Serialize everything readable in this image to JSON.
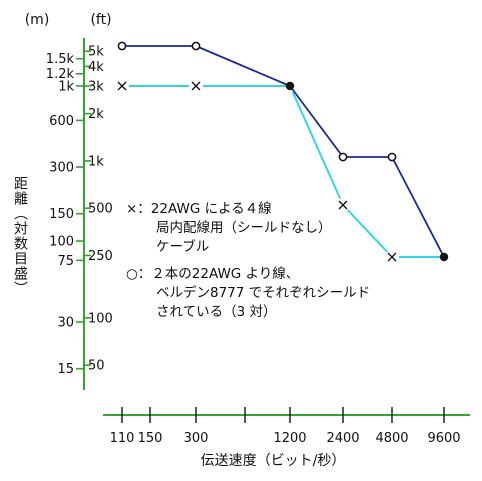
{
  "chart_data": {
    "type": "line",
    "xlabel": "伝送速度（ビット/秒）",
    "ylabel": "距離（対数目盛）",
    "y_units": [
      "(m)",
      "(ft)"
    ],
    "x_scale": "log",
    "y_scale": "log",
    "x_ticks": [
      110,
      150,
      300,
      600,
      1200,
      2400,
      4800,
      9600
    ],
    "x_tick_labels": [
      "110",
      "150",
      "300",
      "",
      "1200",
      "2400",
      "4800",
      "9600"
    ],
    "y_ticks_m": [
      15,
      30,
      75,
      100,
      150,
      300,
      600,
      1000,
      1200,
      1500
    ],
    "y_tick_labels_m": [
      "15",
      "30",
      "75",
      "100",
      "150",
      "300",
      "600",
      "1k",
      "1.2k",
      "1.5k"
    ],
    "y_ticks_ft": [
      50,
      100,
      250,
      500,
      1000,
      2000,
      3000,
      4000,
      5000
    ],
    "y_tick_labels_ft": [
      "50",
      "100",
      "250",
      "500",
      "1k",
      "2k",
      "3k",
      "4k",
      "5k"
    ],
    "grid": false,
    "series": [
      {
        "name": "×：22AWG による４線 局内配線用（シールドなし）ケーブル",
        "marker": "x",
        "color": "#33d6e6",
        "x": [
          110,
          300,
          1200,
          2400,
          4800,
          9600
        ],
        "y": [
          914,
          914,
          914,
          183,
          76,
          76
        ]
      },
      {
        "name": "○：２本の22AWG より線、ベルデン8777 でそれぞれシールドされている（3 対）",
        "marker": "o",
        "color": "#1a2a9c",
        "x": [
          110,
          300,
          1200,
          2400,
          4800,
          9600
        ],
        "y": [
          1524,
          1524,
          914,
          305,
          305,
          76
        ]
      }
    ],
    "legend": [
      {
        "symbol": "×",
        "lines": [
          "×：22AWG による４線",
          "局内配線用（シールドなし）",
          "ケーブル"
        ]
      },
      {
        "symbol": "○",
        "lines": [
          "○：２本の22AWG より線、",
          "ベルデン8777 でそれぞれシールド",
          "されている（3 対）"
        ]
      }
    ],
    "legend_position": "center",
    "colors": {
      "axis": "#33a533",
      "line_a": "#33d6e6",
      "line_b": "#1a2a9c"
    }
  }
}
